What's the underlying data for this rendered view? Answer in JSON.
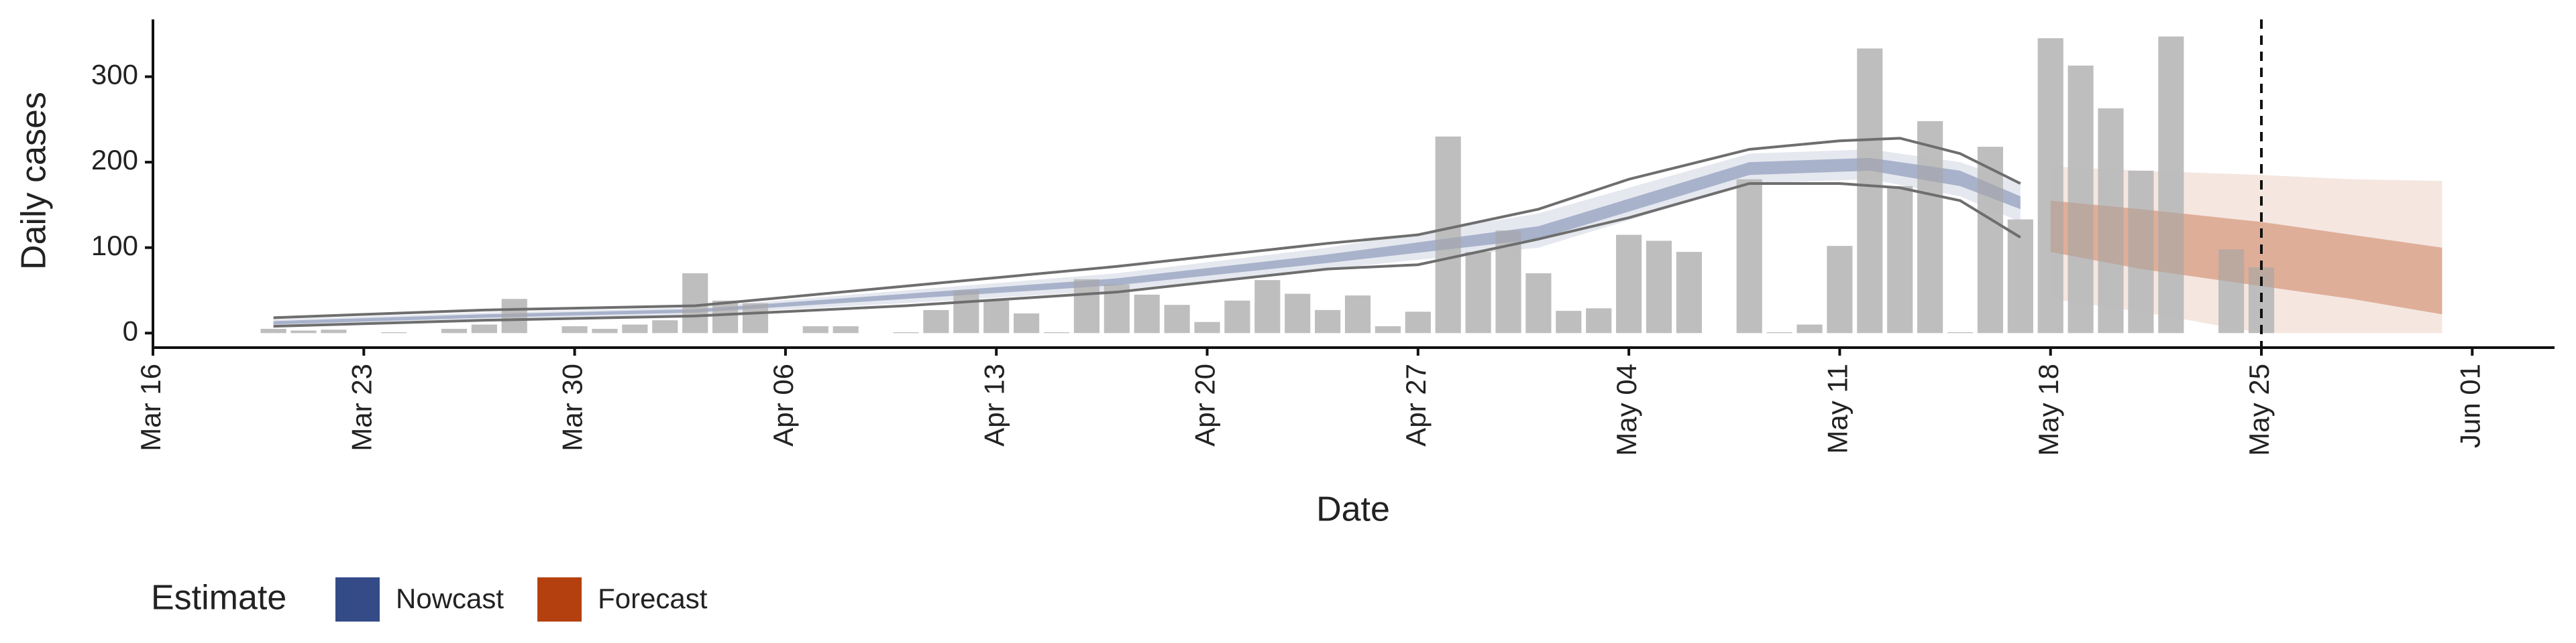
{
  "chart_data": {
    "type": "bar",
    "x_label": "Date",
    "y_label": "Daily cases",
    "categories": [
      "Mar 16",
      "Mar 17",
      "Mar 18",
      "Mar 19",
      "Mar 20",
      "Mar 21",
      "Mar 22",
      "Mar 23",
      "Mar 24",
      "Mar 25",
      "Mar 26",
      "Mar 27",
      "Mar 28",
      "Mar 29",
      "Mar 30",
      "Mar 31",
      "Apr 01",
      "Apr 02",
      "Apr 03",
      "Apr 04",
      "Apr 05",
      "Apr 06",
      "Apr 07",
      "Apr 08",
      "Apr 09",
      "Apr 10",
      "Apr 11",
      "Apr 12",
      "Apr 13",
      "Apr 14",
      "Apr 15",
      "Apr 16",
      "Apr 17",
      "Apr 18",
      "Apr 19",
      "Apr 20",
      "Apr 21",
      "Apr 22",
      "Apr 23",
      "Apr 24",
      "Apr 25",
      "Apr 26",
      "Apr 27",
      "Apr 28",
      "Apr 29",
      "Apr 30",
      "May 01",
      "May 02",
      "May 03",
      "May 04",
      "May 05",
      "May 06",
      "May 07",
      "May 08",
      "May 09",
      "May 10",
      "May 11",
      "May 12",
      "May 13",
      "May 14",
      "May 15",
      "May 16",
      "May 17",
      "May 18",
      "May 19",
      "May 20",
      "May 21",
      "May 22",
      "May 23",
      "May 24",
      "May 25",
      "May 26",
      "May 27",
      "May 28",
      "May 29",
      "May 30",
      "May 31",
      "Jun 01"
    ],
    "values": [
      null,
      null,
      null,
      null,
      5,
      3,
      4,
      0,
      1,
      0,
      5,
      10,
      40,
      0,
      8,
      5,
      10,
      15,
      70,
      38,
      35,
      0,
      8,
      8,
      0,
      1,
      27,
      50,
      38,
      23,
      1,
      63,
      57,
      45,
      33,
      13,
      38,
      62,
      46,
      27,
      44,
      8,
      25,
      230,
      95,
      120,
      70,
      26,
      29,
      115,
      108,
      95,
      0,
      180,
      1,
      10,
      102,
      333,
      172,
      248,
      1,
      218,
      133,
      345,
      313,
      263,
      190,
      347,
      0,
      98,
      77,
      null,
      null,
      null,
      null,
      null,
      null,
      null
    ],
    "color": "#bababa",
    "bands": [
      {
        "name": "Nowcast",
        "color": "#344b87",
        "x": [
          "Mar 20",
          "Mar 27",
          "Apr 03",
          "Apr 10",
          "Apr 17",
          "Apr 24",
          "May 01",
          "May 08",
          "May 12",
          "May 15",
          "May 17"
        ],
        "lower_90": [
          8,
          16,
          22,
          35,
          50,
          75,
          100,
          175,
          180,
          160,
          130
        ],
        "upper_90": [
          16,
          24,
          30,
          50,
          70,
          100,
          140,
          210,
          215,
          200,
          175
        ],
        "lower_50": [
          10,
          18,
          24,
          40,
          56,
          82,
          110,
          185,
          190,
          172,
          145
        ],
        "upper_50": [
          14,
          22,
          28,
          46,
          64,
          92,
          125,
          200,
          205,
          190,
          160
        ]
      },
      {
        "name": "Forecast",
        "color": "#b5400f",
        "x": [
          "May 18",
          "May 21",
          "May 25",
          "May 28",
          "May 31"
        ],
        "lower_90": [
          40,
          25,
          0,
          0,
          0
        ],
        "upper_90": [
          195,
          190,
          185,
          180,
          178
        ],
        "lower_50": [
          95,
          75,
          55,
          40,
          22
        ],
        "upper_50": [
          155,
          145,
          130,
          115,
          100
        ]
      }
    ],
    "lines": [
      {
        "color": "#6e6e6e",
        "x": [
          "Mar 20",
          "Mar 27",
          "Apr 03",
          "Apr 10",
          "Apr 17",
          "Apr 24",
          "Apr 27",
          "May 01",
          "May 04",
          "May 08",
          "May 11",
          "May 13",
          "May 15",
          "May 17"
        ],
        "values": [
          18,
          27,
          32,
          55,
          78,
          105,
          115,
          145,
          180,
          215,
          225,
          228,
          210,
          175
        ]
      },
      {
        "color": "#6e6e6e",
        "x": [
          "Mar 20",
          "Mar 27",
          "Apr 03",
          "Apr 10",
          "Apr 17",
          "Apr 24",
          "Apr 27",
          "May 01",
          "May 04",
          "May 08",
          "May 11",
          "May 13",
          "May 15",
          "May 17"
        ],
        "values": [
          8,
          15,
          20,
          32,
          48,
          75,
          80,
          110,
          135,
          175,
          175,
          170,
          155,
          112
        ]
      }
    ],
    "vline": "May 25",
    "xticks": [
      "Mar 16",
      "Mar 23",
      "Mar 30",
      "Apr 06",
      "Apr 13",
      "Apr 20",
      "Apr 27",
      "May 04",
      "May 11",
      "May 18",
      "May 25",
      "Jun 01"
    ],
    "ylim": [
      -17,
      367
    ],
    "yticks": [
      0,
      100,
      200,
      300
    ],
    "legend_title": "Estimate"
  }
}
